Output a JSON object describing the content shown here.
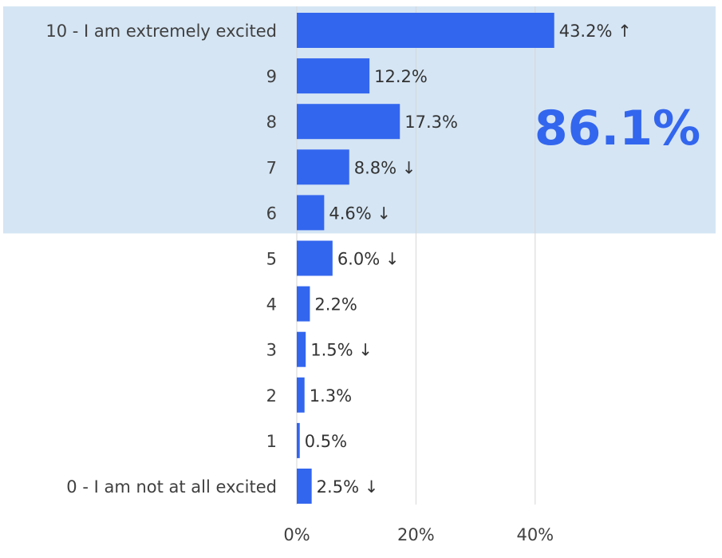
{
  "chart_data": {
    "type": "bar",
    "orientation": "horizontal",
    "categories": [
      "10 - I am extremely excited",
      "9",
      "8",
      "7",
      "6",
      "5",
      "4",
      "3",
      "2",
      "1",
      "0 - I am not at all excited"
    ],
    "values": [
      43.2,
      12.2,
      17.3,
      8.8,
      4.6,
      6.0,
      2.2,
      1.5,
      1.3,
      0.5,
      2.5
    ],
    "value_labels": [
      "43.2%",
      "12.2%",
      "17.3%",
      "8.8%",
      "4.6%",
      "6.0%",
      "2.2%",
      "1.5%",
      "1.3%",
      "0.5%",
      "2.5%"
    ],
    "trend": [
      "up",
      "",
      "",
      "down",
      "down",
      "down",
      "",
      "down",
      "",
      "",
      "down"
    ],
    "trend_glyphs": {
      "up": "↑",
      "down": "↓"
    },
    "xlim": [
      0,
      60
    ],
    "x_ticks": [
      0,
      20,
      40
    ],
    "x_tick_labels": [
      "0%",
      "20%",
      "40%"
    ],
    "grid": true,
    "highlight": {
      "categories": [
        "10 - I am extremely excited",
        "9",
        "8",
        "7",
        "6"
      ],
      "label": "86.1%"
    },
    "colors": {
      "bar": "#3366EE",
      "highlight_band": "#D5E5F4",
      "gridline": "#D6D6D6",
      "highlight_text": "#3366EE"
    }
  }
}
